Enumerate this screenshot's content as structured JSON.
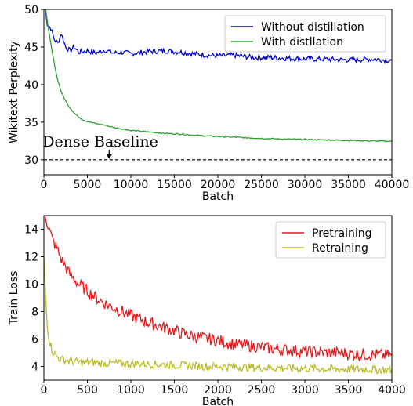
{
  "chart_data": [
    {
      "type": "line",
      "xlabel": "Batch",
      "ylabel": "Wikitext Perplexity",
      "xlim": [
        0,
        40000
      ],
      "ylim": [
        28,
        50
      ],
      "xticks": [
        0,
        5000,
        10000,
        15000,
        20000,
        25000,
        30000,
        35000,
        40000
      ],
      "yticks": [
        30,
        35,
        40,
        45,
        50
      ],
      "legend_position": "top-right",
      "grid": false,
      "series": [
        {
          "name": "Without distillation",
          "color": "#0000cc",
          "x": [
            0,
            400,
            800,
            1200,
            1600,
            2000,
            2500,
            3000,
            3500,
            4000,
            5000,
            6000,
            7000,
            8000,
            9000,
            10000,
            12000,
            14000,
            16000,
            18000,
            20000,
            22000,
            24000,
            26000,
            28000,
            30000,
            32000,
            34000,
            36000,
            38000,
            40000
          ],
          "y": [
            52,
            48,
            47.5,
            46,
            45.5,
            46.8,
            45,
            44.5,
            45,
            44.3,
            44.5,
            44.2,
            44.6,
            44.2,
            44.3,
            44.1,
            44.4,
            44.5,
            44.3,
            44.0,
            43.8,
            43.9,
            43.6,
            43.6,
            43.5,
            43.4,
            43.4,
            43.3,
            43.3,
            43.4,
            43.2
          ]
        },
        {
          "name": "With distllation",
          "color": "#2ca02c",
          "x": [
            0,
            500,
            1000,
            1500,
            2000,
            2500,
            3000,
            3500,
            4000,
            4500,
            5000,
            6000,
            7000,
            8000,
            9000,
            10000,
            12000,
            14000,
            16000,
            18000,
            20000,
            22000,
            24000,
            26000,
            28000,
            30000,
            32000,
            34000,
            36000,
            38000,
            40000
          ],
          "y": [
            52,
            47.5,
            44,
            41,
            39,
            37.8,
            36.9,
            36.2,
            35.7,
            35.3,
            35.1,
            34.8,
            34.6,
            34.3,
            34.1,
            33.9,
            33.7,
            33.5,
            33.4,
            33.2,
            33.1,
            33.0,
            32.9,
            32.8,
            32.75,
            32.7,
            32.65,
            32.6,
            32.55,
            32.5,
            32.45
          ]
        }
      ],
      "baseline": {
        "y": 30,
        "label": "Dense Baseline",
        "style": "dashed",
        "annotation_x": 7500
      }
    },
    {
      "type": "line",
      "xlabel": "Batch",
      "ylabel": "Train Loss",
      "xlim": [
        0,
        4000
      ],
      "ylim": [
        3,
        15
      ],
      "xticks": [
        0,
        500,
        1000,
        1500,
        2000,
        2500,
        3000,
        3500,
        4000
      ],
      "yticks": [
        4,
        6,
        8,
        10,
        12,
        14
      ],
      "legend_position": "top-right",
      "grid": false,
      "series": [
        {
          "name": "Pretraining",
          "color": "#e31a1c",
          "x": [
            0,
            50,
            100,
            150,
            200,
            300,
            400,
            500,
            600,
            700,
            800,
            900,
            1000,
            1200,
            1400,
            1600,
            1800,
            2000,
            2200,
            2400,
            2600,
            2800,
            3000,
            3200,
            3400,
            3600,
            3800,
            4000
          ],
          "y": [
            15.5,
            14.2,
            13.2,
            12.6,
            11.8,
            10.7,
            10.0,
            9.5,
            9.0,
            8.6,
            8.3,
            8.0,
            7.7,
            7.2,
            6.8,
            6.4,
            6.1,
            5.9,
            5.6,
            5.5,
            5.3,
            5.2,
            5.1,
            5.0,
            5.0,
            4.9,
            4.85,
            4.8
          ]
        },
        {
          "name": "Retraining",
          "color": "#bcbd22",
          "x": [
            0,
            20,
            40,
            60,
            80,
            100,
            150,
            200,
            300,
            400,
            500,
            700,
            900,
            1100,
            1300,
            1500,
            1700,
            1900,
            2100,
            2300,
            2500,
            2700,
            2900,
            3100,
            3300,
            3500,
            3700,
            3900,
            4000
          ],
          "y": [
            11.8,
            9.0,
            7.0,
            6.0,
            5.5,
            5.1,
            4.7,
            4.5,
            4.4,
            4.3,
            4.3,
            4.25,
            4.2,
            4.2,
            4.15,
            4.1,
            4.05,
            4.0,
            4.0,
            3.95,
            3.9,
            3.9,
            3.85,
            3.85,
            3.8,
            3.8,
            3.8,
            3.75,
            3.75
          ]
        }
      ]
    }
  ]
}
